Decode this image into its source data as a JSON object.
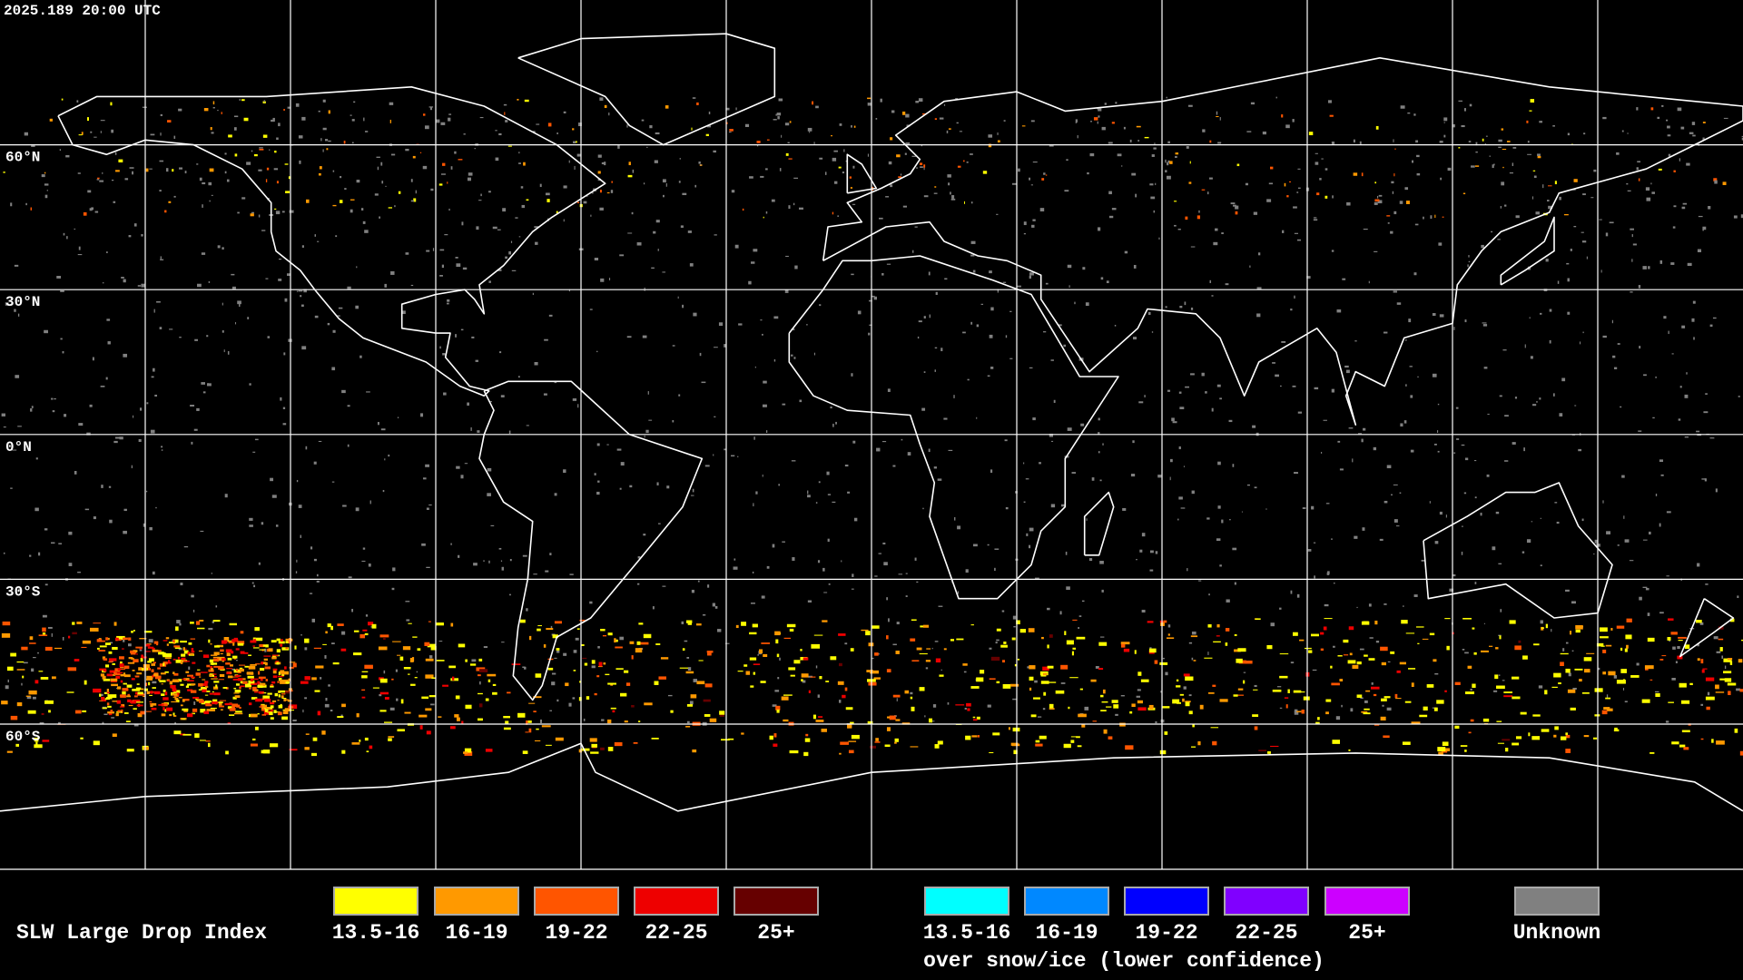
{
  "map": {
    "timestamp": "2025.189 20:00 UTC",
    "lat_labels": [
      "60°N",
      "30°N",
      "0°N",
      "30°S",
      "60°S"
    ]
  },
  "legend": {
    "title": "SLW Large Drop Index",
    "items": [
      {
        "label": "13.5-16",
        "color": "#ffff00"
      },
      {
        "label": "16-19",
        "color": "#ff9900"
      },
      {
        "label": "19-22",
        "color": "#ff5500"
      },
      {
        "label": "22-25",
        "color": "#ee0000"
      },
      {
        "label": "25+",
        "color": "#660000"
      }
    ],
    "snow_items": [
      {
        "label": "13.5-16",
        "color": "#00ffff"
      },
      {
        "label": "16-19",
        "color": "#0088ff"
      },
      {
        "label": "19-22",
        "color": "#0000ff"
      },
      {
        "label": "22-25",
        "color": "#8000ff"
      },
      {
        "label": "25+",
        "color": "#cc00ff"
      }
    ],
    "snow_caption": "over snow/ice (lower confidence)",
    "unknown": {
      "label": "Unknown",
      "color": "#808080"
    }
  }
}
